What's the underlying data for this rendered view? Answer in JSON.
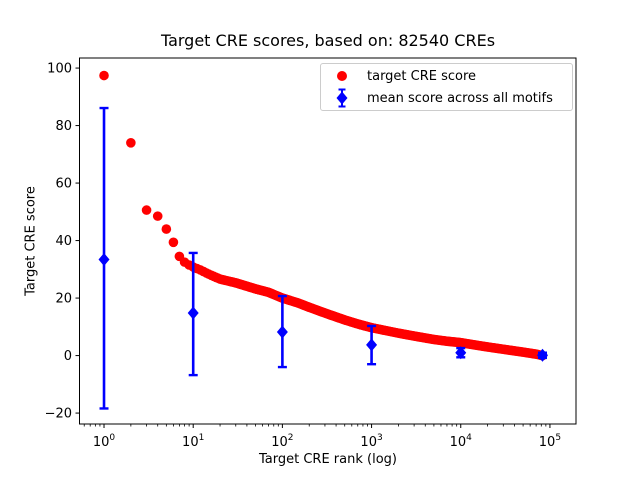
{
  "chart_data": {
    "type": "scatter",
    "title": "Target CRE scores, based on: 82540 CREs",
    "xlabel": "Target CRE rank (log)",
    "ylabel": "Target CRE score",
    "x_scale": "log",
    "grid": false,
    "xlim": [
      0.531,
      196000
    ],
    "ylim": [
      -23.8,
      103.5
    ],
    "x_ticks": [
      {
        "value": 1,
        "base": "10",
        "exponent": "0"
      },
      {
        "value": 10,
        "base": "10",
        "exponent": "1"
      },
      {
        "value": 100,
        "base": "10",
        "exponent": "2"
      },
      {
        "value": 1000,
        "base": "10",
        "exponent": "3"
      },
      {
        "value": 10000,
        "base": "10",
        "exponent": "4"
      },
      {
        "value": 100000,
        "base": "10",
        "exponent": "5"
      }
    ],
    "y_ticks": [
      {
        "value": -20,
        "label": "−20"
      },
      {
        "value": 0,
        "label": "0"
      },
      {
        "value": 20,
        "label": "20"
      },
      {
        "value": 40,
        "label": "40"
      },
      {
        "value": 60,
        "label": "60"
      },
      {
        "value": 80,
        "label": "80"
      },
      {
        "value": 100,
        "label": "100"
      }
    ],
    "legend": {
      "position": "upper right",
      "items": [
        {
          "label": "target CRE score",
          "color": "#ff0000",
          "marker": "circle"
        },
        {
          "label": "mean score across all motifs",
          "color": "#0000ff",
          "marker": "diamond-errorbar"
        }
      ]
    },
    "series": [
      {
        "name": "target CRE score",
        "type": "scatter",
        "marker": "circle",
        "color": "#ff0000",
        "note": "82540 points total; curve sampled at anchor ranks, log-linear between",
        "anchor_points": [
          [
            1,
            97.4
          ],
          [
            2,
            74.0
          ],
          [
            3,
            50.6
          ],
          [
            4,
            48.5
          ],
          [
            5,
            44.0
          ],
          [
            6,
            39.4
          ],
          [
            7,
            34.5
          ],
          [
            8,
            32.5
          ],
          [
            9,
            31.5
          ],
          [
            10,
            30.8
          ],
          [
            12,
            29.8
          ],
          [
            15,
            28.3
          ],
          [
            20,
            26.6
          ],
          [
            30,
            25.3
          ],
          [
            50,
            23.2
          ],
          [
            70,
            22.0
          ],
          [
            100,
            20.0
          ],
          [
            150,
            18.3
          ],
          [
            200,
            16.8
          ],
          [
            300,
            14.8
          ],
          [
            500,
            12.4
          ],
          [
            700,
            11.0
          ],
          [
            1000,
            9.7
          ],
          [
            2000,
            7.8
          ],
          [
            3000,
            6.8
          ],
          [
            5000,
            5.6
          ],
          [
            7000,
            5.0
          ],
          [
            10000,
            4.5
          ],
          [
            15000,
            3.6
          ],
          [
            20000,
            3.0
          ],
          [
            30000,
            2.2
          ],
          [
            50000,
            1.2
          ],
          [
            70000,
            0.5
          ],
          [
            82540,
            0.0
          ]
        ]
      },
      {
        "name": "mean score across all motifs",
        "type": "errorbar",
        "marker": "diamond",
        "color": "#0000ff",
        "points": [
          {
            "rank": 1,
            "mean": 33.4,
            "err_plus": 52.7,
            "err_minus": 51.8
          },
          {
            "rank": 10,
            "mean": 14.8,
            "err_plus": 20.9,
            "err_minus": 21.6
          },
          {
            "rank": 100,
            "mean": 8.2,
            "err_plus": 12.5,
            "err_minus": 12.2
          },
          {
            "rank": 1000,
            "mean": 3.7,
            "err_plus": 6.6,
            "err_minus": 6.7
          },
          {
            "rank": 10000,
            "mean": 1.0,
            "err_plus": 1.6,
            "err_minus": 1.6
          },
          {
            "rank": 82540,
            "mean": 0.1,
            "err_plus": 0.9,
            "err_minus": 0.9
          }
        ]
      }
    ]
  }
}
